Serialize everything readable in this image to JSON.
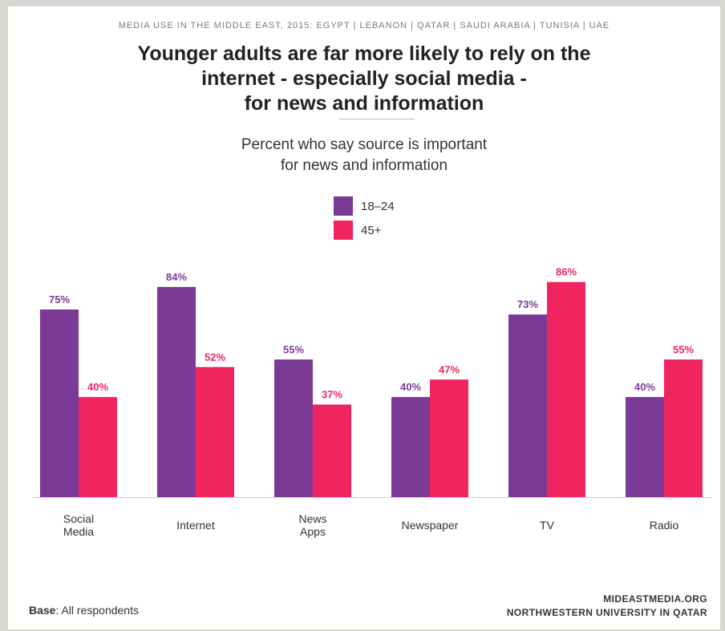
{
  "header": {
    "top_label": "MEDIA USE IN THE MIDDLE EAST, 2015: EGYPT | LEBANON | QATAR | SAUDI ARABIA | TUNISIA | UAE",
    "title_lines": [
      "Younger adults are far more likely to rely on the",
      "internet - especially social media -",
      "for news and information"
    ]
  },
  "footer": {
    "base_key": "Base",
    "base_value": ": All respondents",
    "source_line1": "MIDEASTMEDIA.ORG",
    "source_line2": "NORTHWESTERN UNIVERSITY IN QATAR"
  },
  "chart_data": {
    "type": "bar",
    "title": "",
    "subtitle_lines": [
      "Percent who say source is important",
      "for news and information"
    ],
    "xlabel": "",
    "ylabel": "",
    "ylim": [
      0,
      100
    ],
    "grid": false,
    "legend_position": "top-center",
    "categories": [
      [
        "Social",
        "Media"
      ],
      [
        "Internet"
      ],
      [
        "News",
        "Apps"
      ],
      [
        "Newspaper"
      ],
      [
        "TV"
      ],
      [
        "Radio"
      ]
    ],
    "series": [
      {
        "name": "18–24",
        "color": "#7b3a96",
        "values": [
          75,
          84,
          55,
          40,
          73,
          40
        ],
        "labels": [
          "75%",
          "84%",
          "55%",
          "40%",
          "73%",
          "40%"
        ]
      },
      {
        "name": "45+",
        "color": "#f0245f",
        "values": [
          40,
          52,
          37,
          47,
          86,
          55
        ],
        "labels": [
          "40%",
          "52%",
          "37%",
          "47%",
          "86%",
          "55%"
        ]
      }
    ]
  }
}
